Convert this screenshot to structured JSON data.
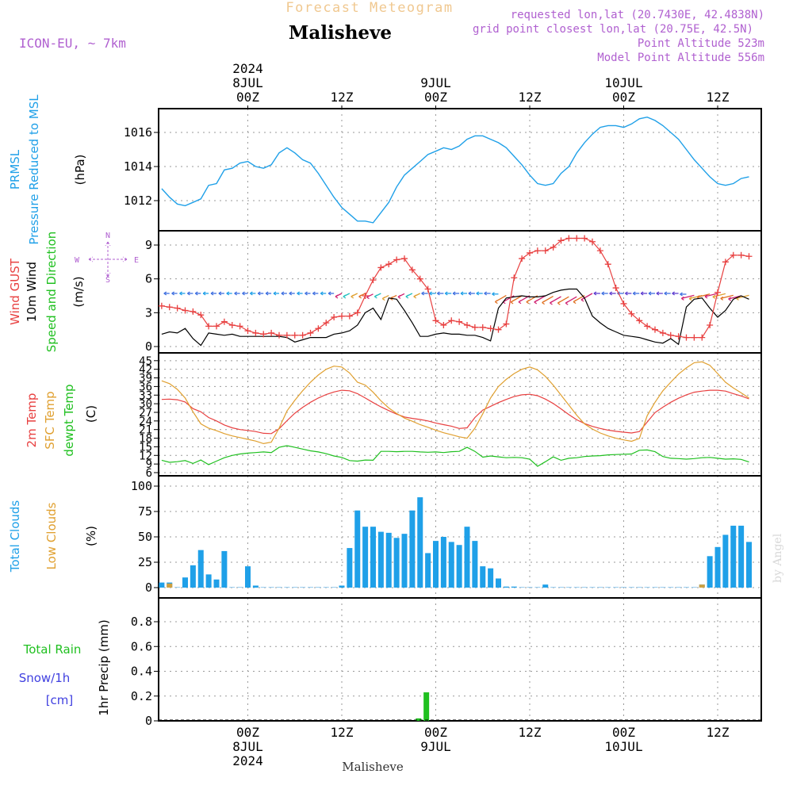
{
  "header": {
    "super_title": "Forecast Meteogram",
    "location": "Malisheve",
    "model": "ICON-EU, ~ 7km",
    "requested": "requested lon,lat (20.7430E, 42.4838N)",
    "grid_point": "grid point closest lon,lat (20.75E, 42.5N)",
    "point_alt": "Point Altitude 523m",
    "model_alt": "Model Point Altitude 556m",
    "watermark": "by Angel",
    "footer": "Malisheve"
  },
  "time_axis": {
    "year": "2024",
    "top": [
      {
        "t": 0,
        "lines": [
          "2024",
          "8JUL",
          "00Z"
        ]
      },
      {
        "t": 12,
        "lines": [
          "12Z"
        ]
      },
      {
        "t": 24,
        "lines": [
          "9JUL",
          "00Z"
        ]
      },
      {
        "t": 36,
        "lines": [
          "12Z"
        ]
      },
      {
        "t": 48,
        "lines": [
          "10JUL",
          "00Z"
        ]
      },
      {
        "t": 60,
        "lines": [
          "12Z"
        ]
      }
    ],
    "bottom": [
      {
        "t": 0,
        "lines": [
          "00Z",
          "8JUL",
          "2024"
        ]
      },
      {
        "t": 12,
        "lines": [
          "12Z"
        ]
      },
      {
        "t": 24,
        "lines": [
          "00Z",
          "9JUL"
        ]
      },
      {
        "t": 36,
        "lines": [
          "12Z"
        ]
      },
      {
        "t": 48,
        "lines": [
          "00Z",
          "10JUL"
        ]
      },
      {
        "t": 60,
        "lines": [
          "12Z"
        ]
      }
    ]
  },
  "colors": {
    "pressure": "#1fa0e8",
    "gust": "#e84040",
    "wind": "#000000",
    "direction": "#20c020",
    "t2m": "#e84040",
    "sfc": "#e0a030",
    "dewpt": "#20c020",
    "clouds": "#1fa0e8",
    "lowclouds": "#e0a030",
    "rain": "#20c020",
    "snow": "#4040e0",
    "header_purple": "#b060d0",
    "super_title": "#f0c890"
  },
  "chart_data": [
    {
      "type": "line",
      "panel": "pressure",
      "title": "PRMSL Pressure Reduced to MSL",
      "label_lines": [
        "PRMSL",
        "Pressure Reduced to MSL"
      ],
      "ylabel": "(hPa)",
      "ylim": [
        1010.5,
        1017.5
      ],
      "yticks": [
        1012,
        1014,
        1016
      ],
      "x_hours": [
        -11,
        -10,
        -9,
        -8,
        -7,
        -6,
        -5,
        -4,
        -3,
        -2,
        -1,
        0,
        1,
        2,
        3,
        4,
        5,
        6,
        7,
        8,
        9,
        10,
        11,
        12,
        13,
        14,
        15,
        16,
        17,
        18,
        19,
        20,
        21,
        22,
        23,
        24,
        25,
        26,
        27,
        28,
        29,
        30,
        31,
        32,
        33,
        34,
        35,
        36,
        37,
        38,
        39,
        40,
        41,
        42,
        43,
        44,
        45,
        46,
        47,
        48,
        49,
        50,
        51,
        52,
        53,
        54,
        55,
        56,
        57,
        58,
        59,
        60,
        61,
        62,
        63,
        64
      ],
      "values": [
        1012.7,
        1012.2,
        1011.8,
        1011.7,
        1011.9,
        1012.1,
        1012.9,
        1013.0,
        1013.8,
        1013.9,
        1014.2,
        1014.3,
        1014.0,
        1013.9,
        1014.1,
        1014.8,
        1015.1,
        1014.8,
        1014.4,
        1014.2,
        1013.6,
        1012.9,
        1012.2,
        1011.6,
        1011.2,
        1010.8,
        1010.8,
        1010.7,
        1011.3,
        1011.9,
        1012.8,
        1013.5,
        1013.9,
        1014.3,
        1014.7,
        1014.9,
        1015.1,
        1015.0,
        1015.2,
        1015.6,
        1015.8,
        1015.8,
        1015.6,
        1015.4,
        1015.1,
        1014.6,
        1014.1,
        1013.5,
        1013.0,
        1012.9,
        1013.0,
        1013.6,
        1014.0,
        1014.8,
        1015.4,
        1015.9,
        1016.3,
        1016.4,
        1016.4,
        1016.3,
        1016.5,
        1016.8,
        1016.9,
        1016.7,
        1016.4,
        1016.0,
        1015.6,
        1015.0,
        1014.4,
        1013.9,
        1013.4,
        1013.0,
        1012.9,
        1013.0,
        1013.3,
        1013.4
      ]
    },
    {
      "type": "line",
      "panel": "wind",
      "title": "Wind GUST / 10m Wind Speed and Direction",
      "label_lines": [
        "Wind GUST",
        "10m Wind",
        "Speed and Direction"
      ],
      "ylabel": "(m/s)",
      "ylim": [
        0,
        10.5
      ],
      "yticks": [
        0,
        3,
        6,
        9
      ],
      "compass": [
        "N",
        "S",
        "W",
        "E"
      ],
      "x_hours": [
        -11,
        -10,
        -9,
        -8,
        -7,
        -6,
        -5,
        -4,
        -3,
        -2,
        -1,
        0,
        1,
        2,
        3,
        4,
        5,
        6,
        7,
        8,
        9,
        10,
        11,
        12,
        13,
        14,
        15,
        16,
        17,
        18,
        19,
        20,
        21,
        22,
        23,
        24,
        25,
        26,
        27,
        28,
        29,
        30,
        31,
        32,
        33,
        34,
        35,
        36,
        37,
        38,
        39,
        40,
        41,
        42,
        43,
        44,
        45,
        46,
        47,
        48,
        49,
        50,
        51,
        52,
        53,
        54,
        55,
        56,
        57,
        58,
        59,
        60,
        61,
        62,
        63,
        64
      ],
      "series": [
        {
          "name": "Wind GUST",
          "values": [
            3.6,
            3.5,
            3.4,
            3.2,
            3.1,
            2.8,
            1.8,
            1.8,
            2.2,
            1.9,
            1.8,
            1.4,
            1.2,
            1.1,
            1.2,
            1.0,
            1.0,
            1.0,
            1.0,
            1.2,
            1.6,
            2.1,
            2.6,
            2.7,
            2.7,
            3.0,
            4.5,
            5.9,
            7.0,
            7.3,
            7.7,
            7.8,
            6.8,
            6.0,
            5.1,
            2.3,
            1.9,
            2.3,
            2.2,
            1.9,
            1.7,
            1.7,
            1.6,
            1.5,
            2.0,
            6.1,
            7.8,
            8.3,
            8.5,
            8.5,
            8.8,
            9.4,
            9.6,
            9.6,
            9.6,
            9.3,
            8.5,
            7.3,
            5.2,
            3.8,
            2.9,
            2.3,
            1.8,
            1.5,
            1.2,
            1.0,
            0.9,
            0.8,
            0.8,
            0.8,
            1.9,
            4.8,
            7.5,
            8.1,
            8.1,
            8.0
          ]
        },
        {
          "name": "10m Wind",
          "values": [
            1.1,
            1.3,
            1.2,
            1.6,
            0.7,
            0.1,
            1.2,
            1.1,
            1.0,
            1.1,
            0.9,
            0.9,
            0.9,
            0.9,
            0.9,
            0.9,
            0.8,
            0.4,
            0.6,
            0.8,
            0.8,
            0.8,
            1.1,
            1.2,
            1.4,
            1.9,
            3.0,
            3.4,
            2.4,
            4.3,
            4.2,
            3.2,
            2.1,
            0.9,
            0.9,
            1.1,
            1.2,
            1.1,
            1.1,
            1.0,
            1.0,
            0.8,
            0.5,
            3.4,
            4.3,
            4.4,
            4.5,
            4.4,
            4.4,
            4.5,
            4.8,
            5.0,
            5.1,
            5.1,
            4.3,
            2.7,
            2.1,
            1.6,
            1.3,
            1.0,
            0.9,
            0.8,
            0.6,
            0.4,
            0.3,
            0.7,
            0.2,
            3.5,
            4.2,
            4.3,
            3.4,
            2.6,
            3.2,
            4.2,
            4.5,
            4.2
          ]
        }
      ],
      "arrow_legend": [
        "10m Wind Speed and Direction"
      ]
    },
    {
      "type": "line",
      "panel": "temperature",
      "title": "2m Temp / SFC Temp / dewpt Temp",
      "label_lines": [
        "2m Temp",
        "SFC Temp",
        "dewpt Temp"
      ],
      "ylabel": "(C)",
      "ylim": [
        5,
        46
      ],
      "yticks": [
        6,
        9,
        12,
        15,
        18,
        21,
        24,
        27,
        30,
        33,
        36,
        39,
        42,
        45
      ],
      "x_hours": [
        -11,
        -10,
        -9,
        -8,
        -7,
        -6,
        -5,
        -4,
        -3,
        -2,
        -1,
        0,
        1,
        2,
        3,
        4,
        5,
        6,
        7,
        8,
        9,
        10,
        11,
        12,
        13,
        14,
        15,
        16,
        17,
        18,
        19,
        20,
        21,
        22,
        23,
        24,
        25,
        26,
        27,
        28,
        29,
        30,
        31,
        32,
        33,
        34,
        35,
        36,
        37,
        38,
        39,
        40,
        41,
        42,
        43,
        44,
        45,
        46,
        47,
        48,
        49,
        50,
        51,
        52,
        53,
        54,
        55,
        56,
        57,
        58,
        59,
        60,
        61,
        62,
        63,
        64
      ],
      "series": [
        {
          "name": "2m Temp",
          "values": [
            31.5,
            31.6,
            31.4,
            30.6,
            28.3,
            27.2,
            25.2,
            24.0,
            22.6,
            21.6,
            21.0,
            20.7,
            20.3,
            19.7,
            19.6,
            21.3,
            24.1,
            26.7,
            28.7,
            30.5,
            32.0,
            33.2,
            34.1,
            34.7,
            34.5,
            33.5,
            32.0,
            30.4,
            28.9,
            27.6,
            26.4,
            25.4,
            24.9,
            24.5,
            24.0,
            23.3,
            22.7,
            22.2,
            21.4,
            21.6,
            25.2,
            27.8,
            29.1,
            30.4,
            31.5,
            32.5,
            33.1,
            33.3,
            32.8,
            31.6,
            30.1,
            28.2,
            26.2,
            24.4,
            23.1,
            22.1,
            21.4,
            20.8,
            20.4,
            20.1,
            19.8,
            20.3,
            23.6,
            26.9,
            28.8,
            30.5,
            31.9,
            33.1,
            34.0,
            34.4,
            34.7,
            34.7,
            34.4,
            33.5,
            32.7,
            31.7
          ]
        },
        {
          "name": "SFC Temp",
          "values": [
            38.0,
            37.0,
            35.0,
            32.0,
            27.2,
            23.0,
            21.5,
            20.6,
            19.6,
            18.8,
            18.2,
            17.6,
            17.0,
            16.1,
            16.6,
            21.5,
            27.5,
            31.2,
            34.5,
            37.5,
            40.0,
            42.0,
            43.1,
            42.8,
            40.7,
            37.5,
            36.5,
            34.0,
            31.0,
            28.5,
            26.6,
            25.0,
            23.9,
            22.7,
            21.8,
            20.8,
            19.9,
            19.2,
            18.5,
            18.0,
            21.5,
            26.5,
            32.0,
            36.0,
            38.5,
            40.5,
            42.0,
            42.8,
            41.8,
            39.5,
            36.5,
            33.0,
            29.5,
            26.0,
            23.0,
            21.2,
            19.8,
            18.8,
            18.0,
            17.4,
            16.9,
            17.9,
            25.8,
            30.5,
            34.5,
            37.5,
            40.3,
            42.5,
            44.3,
            44.6,
            43.4,
            40.5,
            37.5,
            35.5,
            33.8,
            32.0
          ]
        },
        {
          "name": "dewpt Temp",
          "values": [
            10.3,
            9.6,
            9.8,
            10.2,
            9.2,
            10.4,
            8.8,
            10.0,
            11.2,
            12.0,
            12.5,
            12.8,
            13.0,
            13.2,
            13.0,
            14.8,
            15.4,
            14.8,
            14.2,
            13.6,
            13.2,
            12.6,
            11.8,
            11.3,
            10.2,
            10.0,
            10.4,
            10.3,
            13.4,
            13.4,
            13.3,
            13.4,
            13.4,
            13.2,
            13.1,
            13.2,
            13.0,
            13.3,
            13.4,
            14.8,
            13.4,
            11.4,
            11.8,
            11.5,
            11.2,
            11.3,
            11.2,
            10.7,
            8.2,
            9.8,
            11.5,
            10.3,
            11.0,
            11.2,
            11.6,
            11.8,
            11.9,
            12.2,
            12.3,
            12.4,
            12.5,
            13.8,
            13.9,
            13.3,
            11.6,
            11.0,
            10.9,
            10.7,
            10.9,
            11.2,
            11.3,
            11.0,
            10.7,
            10.8,
            10.6,
            9.7
          ]
        }
      ]
    },
    {
      "type": "bar",
      "panel": "clouds",
      "title": "Total Clouds / Low Clouds",
      "label_lines": [
        "Total Clouds",
        "Low Clouds"
      ],
      "ylabel": "(%)",
      "ylim": [
        -5,
        105
      ],
      "yticks": [
        0,
        25,
        50,
        75,
        100
      ],
      "x_hours": [
        -11,
        -10,
        -9,
        -8,
        -7,
        -6,
        -5,
        -4,
        -3,
        -2,
        -1,
        0,
        1,
        2,
        3,
        4,
        5,
        6,
        7,
        8,
        9,
        10,
        11,
        12,
        13,
        14,
        15,
        16,
        17,
        18,
        19,
        20,
        21,
        22,
        23,
        24,
        25,
        26,
        27,
        28,
        29,
        30,
        31,
        32,
        33,
        34,
        35,
        36,
        37,
        38,
        39,
        40,
        41,
        42,
        43,
        44,
        45,
        46,
        47,
        48,
        49,
        50,
        51,
        52,
        53,
        54,
        55,
        56,
        57,
        58,
        59,
        60,
        61,
        62,
        63,
        64
      ],
      "series": [
        {
          "name": "Total Clouds",
          "values": [
            5,
            5,
            0,
            10,
            22,
            37,
            13,
            8,
            36,
            0,
            0,
            21,
            2,
            0,
            0,
            0,
            0,
            0,
            0,
            0,
            0,
            0,
            0,
            2,
            39,
            76,
            60,
            60,
            55,
            54,
            49,
            53,
            76,
            89,
            34,
            46,
            50,
            45,
            42,
            60,
            46,
            21,
            19,
            9,
            1,
            1,
            0,
            0,
            0,
            3,
            0,
            0,
            0,
            0,
            0,
            0,
            0,
            0,
            0,
            0,
            0,
            0,
            0,
            0,
            0,
            0,
            0,
            0,
            0,
            3,
            31,
            40,
            52,
            61,
            61,
            45
          ]
        },
        {
          "name": "Low Clouds",
          "values": [
            0,
            4,
            0,
            0,
            0,
            0,
            0,
            0,
            0,
            0,
            0,
            0,
            0,
            0,
            0,
            0,
            0,
            0,
            0,
            0,
            0,
            0,
            0,
            0,
            0,
            0,
            0,
            0,
            0,
            0,
            0,
            0,
            0,
            0,
            0,
            0,
            0,
            0,
            0,
            0,
            0,
            0,
            0,
            0,
            0,
            0,
            0,
            0,
            0,
            0,
            0,
            0,
            0,
            0,
            0,
            0,
            0,
            0,
            0,
            0,
            0,
            0,
            0,
            0,
            0,
            0,
            0,
            0,
            0,
            3,
            0,
            0,
            0,
            0,
            0,
            0
          ]
        }
      ]
    },
    {
      "type": "bar",
      "panel": "precip",
      "title": "Total Rain / Snow/1h [cm]",
      "label_lines": [
        "Total  Rain",
        "Snow/1h",
        "[cm]"
      ],
      "ylabel": "1hr Precip (mm)",
      "ylim": [
        0,
        0.98
      ],
      "yticks": [
        0,
        0.2,
        0.4,
        0.6,
        0.8
      ],
      "series": [
        {
          "name": "Total Rain",
          "x": [
            21.8,
            22.8
          ],
          "values": [
            0.02,
            0.23
          ]
        },
        {
          "name": "Snow/1h",
          "x": [],
          "values": []
        }
      ]
    }
  ]
}
